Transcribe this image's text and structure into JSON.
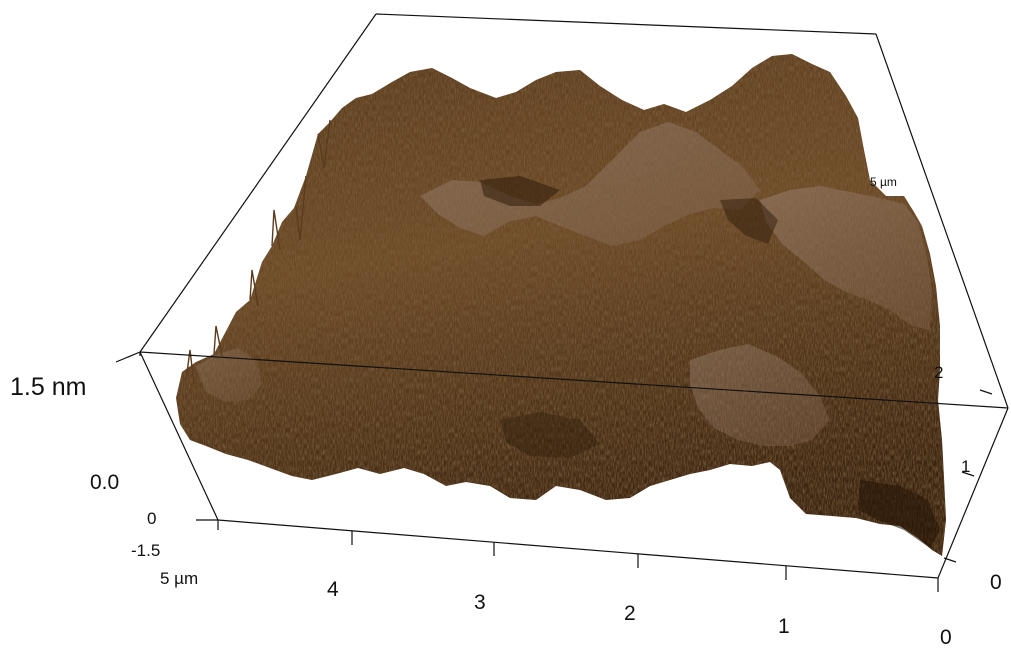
{
  "image": {
    "kind": "AFM 3D surface topography",
    "colors": {
      "surface_dark": "#3b2410",
      "surface_mid": "#6e4a26",
      "surface_light": "#a88e80",
      "box_line": "#111111",
      "background": "#ffffff"
    }
  },
  "z_axis": {
    "top_label": "1.5 nm",
    "mid_label": "0.0",
    "bottom_label": "-1.5"
  },
  "x_axis": {
    "origin_label": "0",
    "end_label": "5 µm",
    "ticks": [
      "4",
      "3",
      "2",
      "1"
    ],
    "right_origin_label": "0"
  },
  "y_axis": {
    "origin_label": "0",
    "ticks": [
      "1",
      "2"
    ],
    "end_label": "5 µm"
  }
}
